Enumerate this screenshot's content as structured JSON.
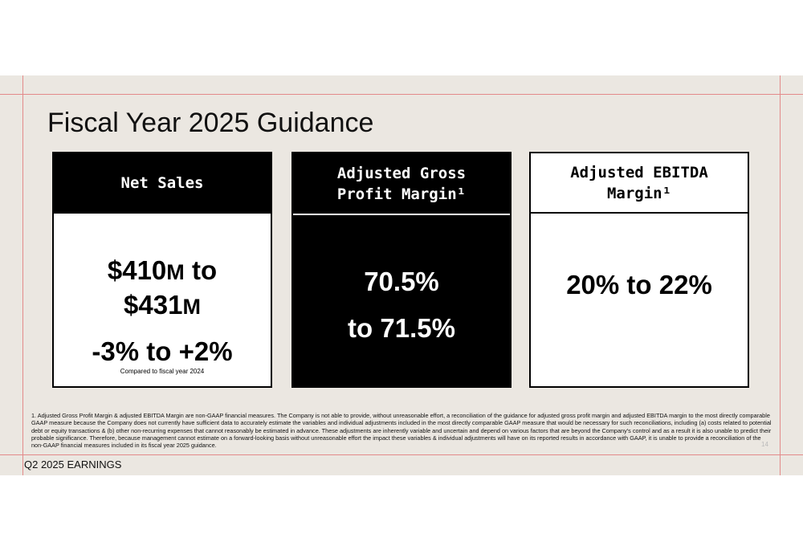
{
  "title": "Fiscal Year 2025 Guidance",
  "cards": [
    {
      "header": "Net Sales",
      "value_line1_num": "$410",
      "value_line1_unit": "M",
      "value_line1_rest": " to",
      "value_line2_num": "$431",
      "value_line2_unit": "M",
      "growth": "-3% to +2%",
      "growth_note": "Compared to fiscal year 2024"
    },
    {
      "header_line1": "Adjusted Gross",
      "header_line2": "Profit Margin¹",
      "value_line1": "70.5%",
      "value_line2": "to 71.5%"
    },
    {
      "header_line1": "Adjusted EBITDA",
      "header_line2": "Margin¹",
      "value": "20% to 22%"
    }
  ],
  "footnote": "1. Adjusted Gross Profit Margin & adjusted EBITDA Margin are non-GAAP financial measures. The Company is not able to provide, without unreasonable effort, a reconciliation of the guidance for adjusted gross profit margin and adjusted EBITDA margin to the most directly comparable GAAP measure because the Company does not currently have sufficient data to accurately estimate the variables and individual adjustments included in the most directly comparable GAAP measure that would be necessary for such reconciliations, including (a) costs related to potential debt or equity transactions & (b) other non-recurring expenses that cannot reasonably be estimated in advance. These adjustments are inherently variable and uncertain and depend on various factors that are beyond the Company's control and as a result it is also unable to predict their probable significance. Therefore, because management cannot estimate on a forward-looking basis without unreasonable effort the impact these variables & individual adjustments will have on its reported results in accordance with GAAP, it is unable to provide a reconciliation of the non-GAAP financial measures included in its fiscal year 2025 guidance.",
  "page_number": "14",
  "footer": "Q2 2025 EARNINGS"
}
